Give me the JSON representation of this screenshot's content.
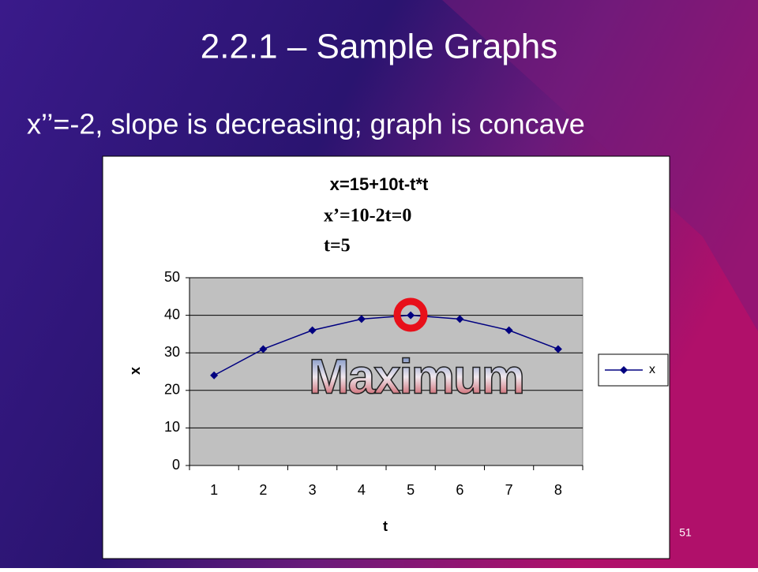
{
  "slide": {
    "title": "2.2.1 – Sample Graphs",
    "subtitle": "x’’=-2, slope is decreasing; graph is concave",
    "page_number": "51"
  },
  "chart_data": {
    "type": "line",
    "title": "x=15+10t-t*t",
    "annotations": [
      "x’=10-2t=0",
      "t=5",
      "Maximum"
    ],
    "x_label": "t",
    "y_label": "x",
    "categories": [
      "1",
      "2",
      "3",
      "4",
      "5",
      "6",
      "7",
      "8"
    ],
    "series": [
      {
        "name": "x",
        "color": "#000080",
        "values": [
          24,
          31,
          36,
          39,
          40,
          39,
          36,
          31
        ]
      }
    ],
    "ylim": [
      0,
      50
    ],
    "yticks": [
      0,
      10,
      20,
      30,
      40,
      50
    ],
    "grid": true,
    "legend": "right",
    "plot_color": "#c0c0c0"
  }
}
